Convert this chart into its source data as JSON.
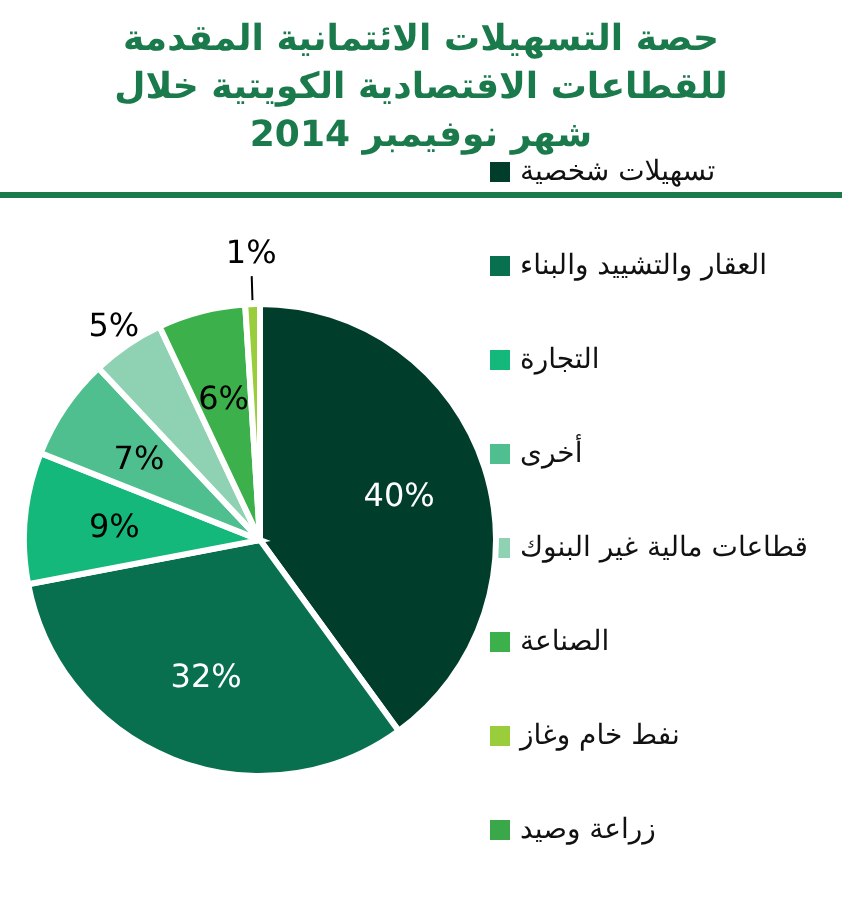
{
  "chart_data": {
    "type": "pie",
    "title": "حصة التسهيلات الائتمانية المقدمة للقطاعات الاقتصادية الكويتية خلال  شهر نوفيمبر 2014",
    "categories": [
      "تسهيلات شخصية",
      "العقار والتشييد والبناء",
      "التجارة",
      "أخرى",
      "قطاعات مالية غير البنوك",
      "الصناعة",
      "نفط خام وغاز",
      "زراعة وصيد"
    ],
    "values": [
      40,
      32,
      9,
      7,
      5,
      6,
      1,
      0
    ],
    "value_labels": [
      "40%",
      "32%",
      "9%",
      "7%",
      "5%",
      "6%",
      "1%",
      null
    ],
    "colors": [
      "#003d2a",
      "#08704f",
      "#14b87a",
      "#4fbf8f",
      "#8fd1b3",
      "#3cb04a",
      "#9acd3c",
      "#3aa84a"
    ],
    "legend": "right"
  }
}
